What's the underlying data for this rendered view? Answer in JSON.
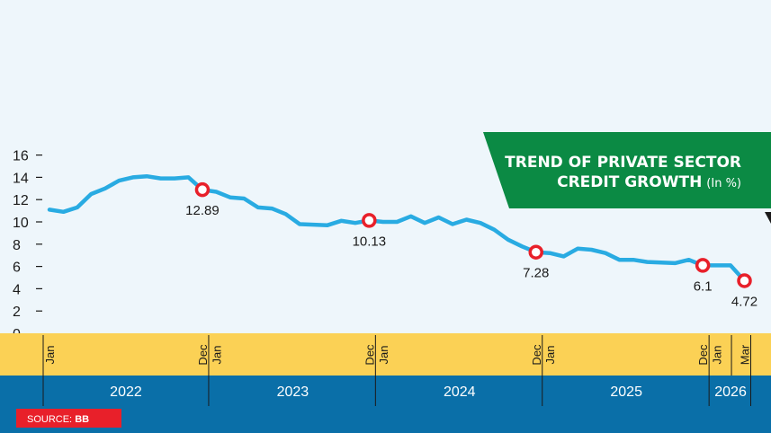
{
  "title": {
    "line1": "TREND OF PRIVATE SECTOR",
    "line2": "CREDIT GROWTH",
    "unit": "(In %)"
  },
  "source": {
    "prefix": "SOURCE: ",
    "name": "BB"
  },
  "colors": {
    "background": "#eef6fb",
    "line": "#29abe2",
    "marker": "#e8202a",
    "month_band": "#fbd155",
    "year_band": "#0a6fa8",
    "title_banner": "#0b8a44",
    "source_badge": "#e8202a"
  },
  "chart_data": {
    "type": "line",
    "ylim": [
      0,
      16
    ],
    "yticks": [
      16,
      14,
      12,
      10,
      8,
      6,
      4,
      2,
      0
    ],
    "months": [
      {
        "label": "Jan",
        "index": 0
      },
      {
        "label": "Dec",
        "index": 11
      },
      {
        "label": "Jan",
        "index": 12
      },
      {
        "label": "Dec",
        "index": 23
      },
      {
        "label": "Jan",
        "index": 24
      },
      {
        "label": "Dec",
        "index": 35
      },
      {
        "label": "Jan",
        "index": 36
      },
      {
        "label": "Dec",
        "index": 47
      },
      {
        "label": "Jan",
        "index": 48
      },
      {
        "label": "Mar",
        "index": 50
      }
    ],
    "years": [
      {
        "label": "2022",
        "start": 0,
        "end": 11
      },
      {
        "label": "2023",
        "start": 12,
        "end": 23
      },
      {
        "label": "2024",
        "start": 24,
        "end": 35
      },
      {
        "label": "2025",
        "start": 36,
        "end": 47
      },
      {
        "label": "2026",
        "start": 48,
        "end": 50
      }
    ],
    "series": [
      {
        "values": [
          11.1,
          10.9,
          11.3,
          12.5,
          13.0,
          13.7,
          14.0,
          14.1,
          13.9,
          13.9,
          14.0,
          12.89,
          12.7,
          12.2,
          12.1,
          11.3,
          11.2,
          10.7,
          9.8,
          9.75,
          9.7,
          10.1,
          9.9,
          10.13,
          10.0,
          10.0,
          10.5,
          9.9,
          10.4,
          9.8,
          10.2,
          9.9,
          9.3,
          8.4,
          7.8,
          7.28,
          7.2,
          6.9,
          7.6,
          7.5,
          7.2,
          6.6,
          6.6,
          6.4,
          6.35,
          6.3,
          6.6,
          6.1,
          6.1,
          6.1,
          4.72
        ]
      }
    ],
    "annotations": [
      {
        "index": 11,
        "text": "12.89"
      },
      {
        "index": 23,
        "text": "10.13"
      },
      {
        "index": 35,
        "text": "7.28"
      },
      {
        "index": 47,
        "text": "6.1"
      },
      {
        "index": 50,
        "text": "4.72"
      }
    ]
  }
}
